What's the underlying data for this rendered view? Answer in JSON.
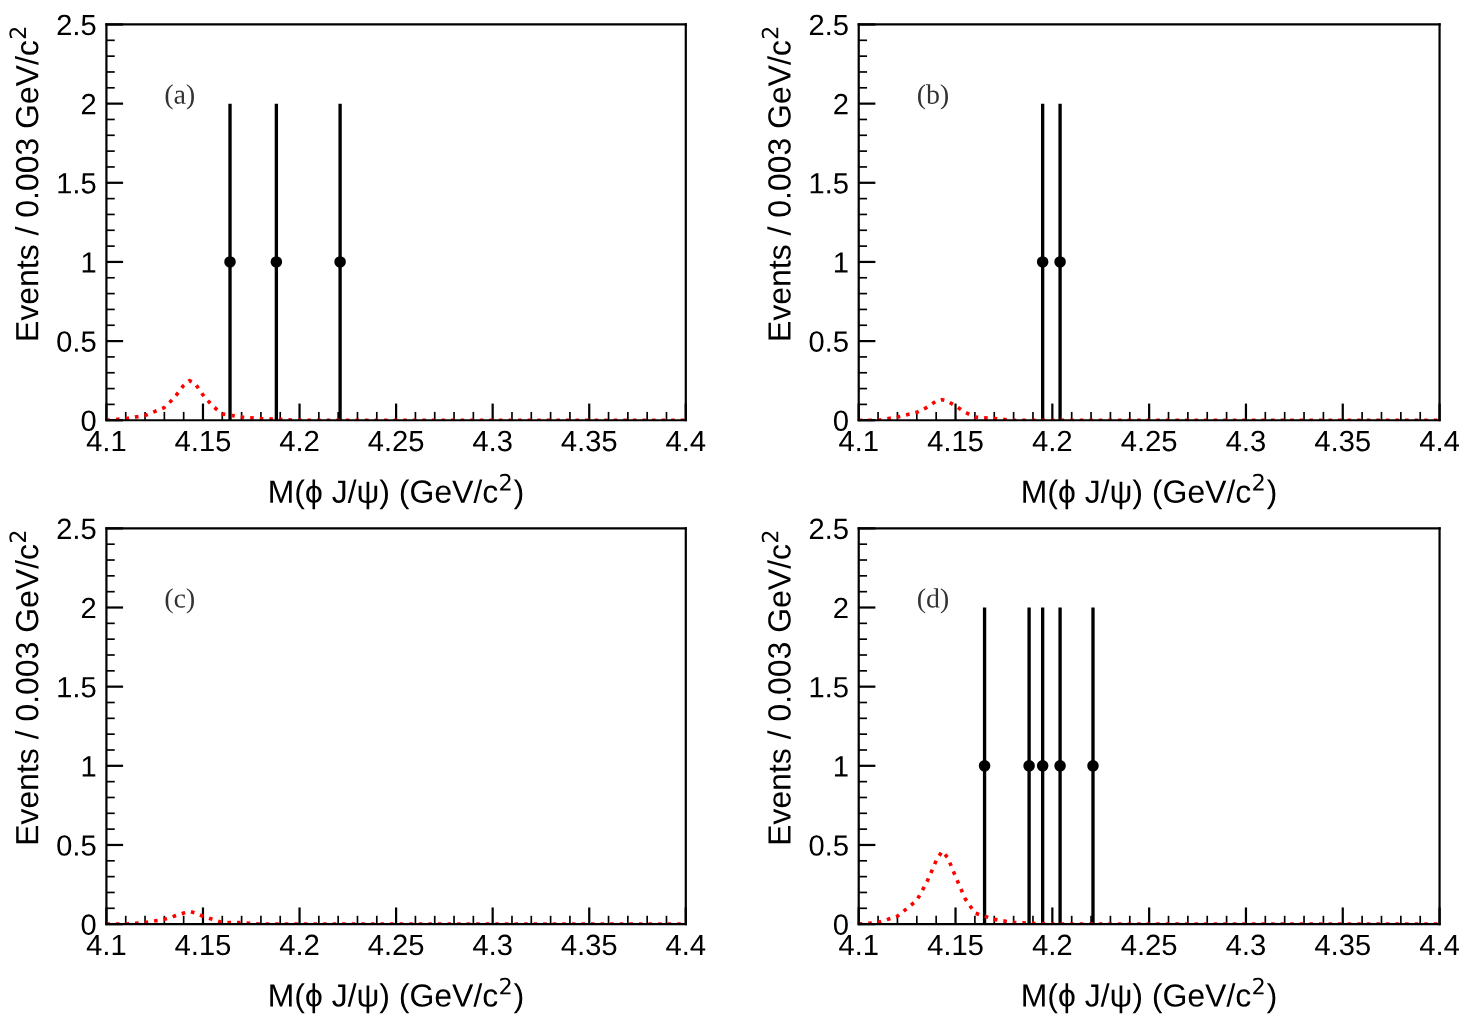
{
  "chart_data": [
    {
      "type": "scatter",
      "annotations": [
        "(a)"
      ],
      "xlabel": "M(ϕ J/ψ) (GeV/c$^{2}$)",
      "ylabel": "Events / 0.003 GeV/c$^{2}$",
      "xlim": [
        4.1,
        4.4
      ],
      "ylim": [
        0,
        2.5
      ],
      "xticks": [
        4.1,
        4.15,
        4.2,
        4.25,
        4.3,
        4.35,
        4.4
      ],
      "yticks": [
        0,
        0.5,
        1,
        1.5,
        2,
        2.5
      ],
      "grid": false,
      "legend": false,
      "series": [
        {
          "color": "#000000",
          "marker": "circle",
          "x": [
            4.164,
            4.188,
            4.221
          ],
          "values": [
            1,
            1,
            1
          ],
          "errors": [
            1,
            1,
            1
          ]
        },
        {
          "type": "line",
          "color": "#ff0000",
          "line_style": "dotted",
          "marker": "none",
          "x": [
            4.1,
            4.11,
            4.12,
            4.13,
            4.135,
            4.14,
            4.143,
            4.146,
            4.15,
            4.155,
            4.16,
            4.17,
            4.18,
            4.2,
            4.4
          ],
          "values": [
            0,
            0.01,
            0.03,
            0.08,
            0.14,
            0.22,
            0.25,
            0.23,
            0.16,
            0.09,
            0.04,
            0.02,
            0.01,
            0,
            0
          ]
        }
      ]
    },
    {
      "type": "scatter",
      "annotations": [
        "(b)"
      ],
      "xlabel": "M(ϕ J/ψ) (GeV/c$^{2}$)",
      "ylabel": "Events / 0.003 GeV/c$^{2}$",
      "xlim": [
        4.1,
        4.4
      ],
      "ylim": [
        0,
        2.5
      ],
      "xticks": [
        4.1,
        4.15,
        4.2,
        4.25,
        4.3,
        4.35,
        4.4
      ],
      "yticks": [
        0,
        0.5,
        1,
        1.5,
        2,
        2.5
      ],
      "grid": false,
      "legend": false,
      "series": [
        {
          "color": "#000000",
          "marker": "circle",
          "x": [
            4.195,
            4.204
          ],
          "values": [
            1,
            1
          ],
          "errors": [
            1,
            1
          ]
        },
        {
          "type": "line",
          "color": "#ff0000",
          "line_style": "dotted",
          "marker": "none",
          "x": [
            4.1,
            4.11,
            4.12,
            4.13,
            4.135,
            4.14,
            4.143,
            4.146,
            4.15,
            4.155,
            4.16,
            4.17,
            4.18,
            4.2,
            4.4
          ],
          "values": [
            0,
            0,
            0.02,
            0.05,
            0.08,
            0.12,
            0.13,
            0.12,
            0.09,
            0.05,
            0.02,
            0.01,
            0,
            0,
            0
          ]
        }
      ]
    },
    {
      "type": "scatter",
      "annotations": [
        "(c)"
      ],
      "xlabel": "M(ϕ J/ψ) (GeV/c$^{2}$)",
      "ylabel": "Events / 0.003 GeV/c$^{2}$",
      "xlim": [
        4.1,
        4.4
      ],
      "ylim": [
        0,
        2.5
      ],
      "xticks": [
        4.1,
        4.15,
        4.2,
        4.25,
        4.3,
        4.35,
        4.4
      ],
      "yticks": [
        0,
        0.5,
        1,
        1.5,
        2,
        2.5
      ],
      "grid": false,
      "legend": false,
      "series": [
        {
          "type": "line",
          "color": "#ff0000",
          "line_style": "dotted",
          "marker": "none",
          "x": [
            4.1,
            4.11,
            4.12,
            4.13,
            4.135,
            4.14,
            4.143,
            4.146,
            4.15,
            4.155,
            4.16,
            4.17,
            4.18,
            4.2,
            4.4
          ],
          "values": [
            0,
            0,
            0.01,
            0.03,
            0.05,
            0.07,
            0.08,
            0.07,
            0.05,
            0.03,
            0.01,
            0.01,
            0,
            0,
            0
          ]
        }
      ]
    },
    {
      "type": "scatter",
      "annotations": [
        "(d)"
      ],
      "xlabel": "M(ϕ J/ψ) (GeV/c$^{2}$)",
      "ylabel": "Events / 0.003 GeV/c$^{2}$",
      "xlim": [
        4.1,
        4.4
      ],
      "ylim": [
        0,
        2.5
      ],
      "xticks": [
        4.1,
        4.15,
        4.2,
        4.25,
        4.3,
        4.35,
        4.4
      ],
      "yticks": [
        0,
        0.5,
        1,
        1.5,
        2,
        2.5
      ],
      "grid": false,
      "legend": false,
      "series": [
        {
          "color": "#000000",
          "marker": "circle",
          "x": [
            4.165,
            4.188,
            4.195,
            4.204,
            4.221
          ],
          "values": [
            1,
            1,
            1,
            1,
            1
          ],
          "errors": [
            1,
            1,
            1,
            1,
            1
          ]
        },
        {
          "type": "line",
          "color": "#ff0000",
          "line_style": "dotted",
          "marker": "none",
          "x": [
            4.1,
            4.11,
            4.12,
            4.13,
            4.135,
            4.14,
            4.143,
            4.146,
            4.15,
            4.155,
            4.16,
            4.17,
            4.18,
            4.2,
            4.4
          ],
          "values": [
            0,
            0.01,
            0.05,
            0.15,
            0.26,
            0.4,
            0.46,
            0.42,
            0.3,
            0.16,
            0.07,
            0.03,
            0.01,
            0,
            0
          ]
        }
      ]
    }
  ]
}
